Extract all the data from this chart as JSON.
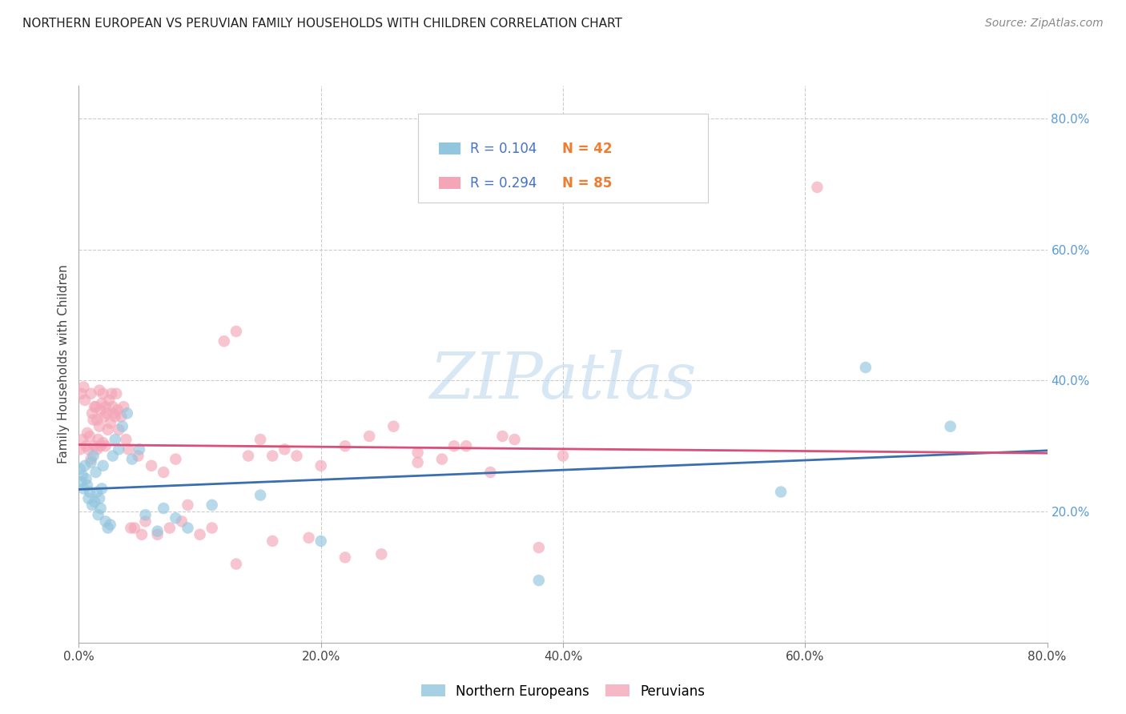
{
  "title": "NORTHERN EUROPEAN VS PERUVIAN FAMILY HOUSEHOLDS WITH CHILDREN CORRELATION CHART",
  "source": "Source: ZipAtlas.com",
  "ylabel": "Family Households with Children",
  "watermark": "ZIPatlas",
  "blue_color": "#92c5de",
  "pink_color": "#f4a6b8",
  "blue_line_color": "#3a6faf",
  "pink_line_color": "#d94f7a",
  "background_color": "#ffffff",
  "grid_color": "#cccccc",
  "xlim": [
    0.0,
    0.8
  ],
  "ylim": [
    0.0,
    0.85
  ],
  "blue_x": [
    0.001,
    0.002,
    0.003,
    0.004,
    0.005,
    0.006,
    0.007,
    0.008,
    0.009,
    0.01,
    0.011,
    0.012,
    0.013,
    0.014,
    0.015,
    0.016,
    0.017,
    0.018,
    0.019,
    0.02,
    0.022,
    0.024,
    0.026,
    0.028,
    0.03,
    0.033,
    0.036,
    0.04,
    0.044,
    0.05,
    0.055,
    0.065,
    0.07,
    0.08,
    0.09,
    0.11,
    0.15,
    0.2,
    0.38,
    0.58,
    0.65,
    0.72
  ],
  "blue_y": [
    0.265,
    0.245,
    0.255,
    0.235,
    0.27,
    0.25,
    0.24,
    0.22,
    0.23,
    0.275,
    0.21,
    0.285,
    0.215,
    0.26,
    0.23,
    0.195,
    0.22,
    0.205,
    0.235,
    0.27,
    0.185,
    0.175,
    0.18,
    0.285,
    0.31,
    0.295,
    0.33,
    0.35,
    0.28,
    0.295,
    0.195,
    0.17,
    0.205,
    0.19,
    0.175,
    0.21,
    0.225,
    0.155,
    0.095,
    0.23,
    0.42,
    0.33
  ],
  "pink_x": [
    0.001,
    0.002,
    0.003,
    0.004,
    0.005,
    0.006,
    0.007,
    0.008,
    0.009,
    0.01,
    0.01,
    0.011,
    0.012,
    0.013,
    0.013,
    0.014,
    0.015,
    0.015,
    0.016,
    0.017,
    0.017,
    0.018,
    0.018,
    0.019,
    0.02,
    0.02,
    0.021,
    0.022,
    0.022,
    0.023,
    0.024,
    0.025,
    0.026,
    0.027,
    0.028,
    0.029,
    0.03,
    0.031,
    0.032,
    0.033,
    0.035,
    0.037,
    0.039,
    0.041,
    0.043,
    0.046,
    0.049,
    0.052,
    0.055,
    0.06,
    0.065,
    0.07,
    0.075,
    0.08,
    0.085,
    0.09,
    0.1,
    0.11,
    0.12,
    0.13,
    0.14,
    0.15,
    0.16,
    0.17,
    0.18,
    0.2,
    0.22,
    0.24,
    0.26,
    0.28,
    0.3,
    0.32,
    0.35,
    0.38,
    0.4,
    0.36,
    0.34,
    0.31,
    0.28,
    0.25,
    0.22,
    0.19,
    0.16,
    0.13,
    0.61
  ],
  "pink_y": [
    0.295,
    0.38,
    0.31,
    0.39,
    0.37,
    0.3,
    0.32,
    0.295,
    0.315,
    0.28,
    0.38,
    0.35,
    0.34,
    0.36,
    0.3,
    0.36,
    0.34,
    0.295,
    0.31,
    0.33,
    0.385,
    0.355,
    0.3,
    0.365,
    0.305,
    0.38,
    0.345,
    0.36,
    0.3,
    0.35,
    0.325,
    0.37,
    0.335,
    0.38,
    0.36,
    0.35,
    0.345,
    0.38,
    0.355,
    0.325,
    0.345,
    0.36,
    0.31,
    0.295,
    0.175,
    0.175,
    0.285,
    0.165,
    0.185,
    0.27,
    0.165,
    0.26,
    0.175,
    0.28,
    0.185,
    0.21,
    0.165,
    0.175,
    0.46,
    0.475,
    0.285,
    0.31,
    0.155,
    0.295,
    0.285,
    0.27,
    0.3,
    0.315,
    0.33,
    0.29,
    0.28,
    0.3,
    0.315,
    0.145,
    0.285,
    0.31,
    0.26,
    0.3,
    0.275,
    0.135,
    0.13,
    0.16,
    0.285,
    0.12,
    0.695
  ]
}
